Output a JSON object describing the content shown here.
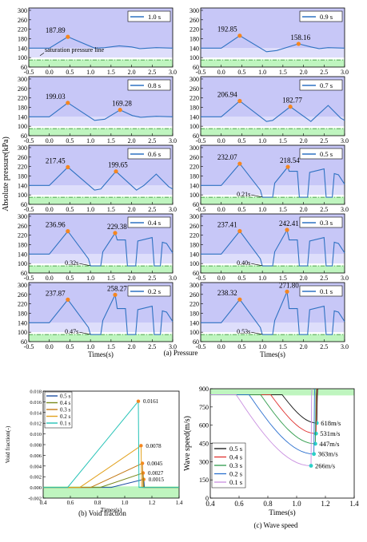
{
  "figure": {
    "caption_a": "(a) Pressure",
    "caption_b": "(b) Void fraction",
    "caption_c": "(c) Wave speed"
  },
  "colors": {
    "panel_bg": "#c7c7f7",
    "panel_bg_light": "#dedefb",
    "green_band": "#bff5bf",
    "green_line": "#2e8b2e",
    "pressure_line": "#2f72c2",
    "peak_marker": "#f5861f",
    "void_series": [
      "#1f4fa3",
      "#7a8a1c",
      "#c47b18",
      "#e2a21f",
      "#24c2b6"
    ],
    "wave_series": [
      "#111111",
      "#e0302e",
      "#2e9b4a",
      "#2a6fcf",
      "#c98fe0"
    ],
    "wave_marker": "#2bd0c7"
  },
  "chart_data": [
    {
      "type": "line",
      "id": "pressure",
      "ylabel": "Absolute pressure(kPa)",
      "xlabel": "Times(s)",
      "xlim": [
        -0.5,
        3.0
      ],
      "ylim": [
        60,
        310
      ],
      "xticks": [
        "-0.5",
        "0.0",
        "0.5",
        "1.0",
        "1.5",
        "2.0",
        "2.5",
        "3.0"
      ],
      "yticks": [
        "60",
        "100",
        "140",
        "180",
        "220",
        "260",
        "300"
      ],
      "saturation_level": 90,
      "saturation_label": "saturation pressure line",
      "panels": [
        {
          "legend": "1.0 s",
          "closure": 1.0,
          "peaks": [
            {
              "t": 0.45,
              "p": 187.89,
              "label": "187.89"
            }
          ]
        },
        {
          "legend": "0.9 s",
          "closure": 0.9,
          "peaks": [
            {
              "t": 0.45,
              "p": 192.85,
              "label": "192.85"
            },
            {
              "t": 1.88,
              "p": 158.16,
              "label": "158.16"
            }
          ]
        },
        {
          "legend": "0.8 s",
          "closure": 0.8,
          "peaks": [
            {
              "t": 0.45,
              "p": 199.03,
              "label": "199.03"
            },
            {
              "t": 1.72,
              "p": 169.28,
              "label": "169.28"
            }
          ]
        },
        {
          "legend": "0.7 s",
          "closure": 0.7,
          "peaks": [
            {
              "t": 0.45,
              "p": 206.94,
              "label": "206.94"
            },
            {
              "t": 1.68,
              "p": 182.77,
              "label": "182.77"
            }
          ]
        },
        {
          "legend": "0.6 s",
          "closure": 0.6,
          "peaks": [
            {
              "t": 0.45,
              "p": 217.45,
              "label": "217.45"
            },
            {
              "t": 1.62,
              "p": 199.65,
              "label": "199.65"
            }
          ]
        },
        {
          "legend": "0.5 s",
          "closure": 0.5,
          "peaks": [
            {
              "t": 0.45,
              "p": 232.07,
              "label": "232.07"
            },
            {
              "t": 1.62,
              "p": 218.54,
              "label": "218.54"
            }
          ],
          "duration_label": "0.21s"
        },
        {
          "legend": "0.4 s",
          "closure": 0.4,
          "peaks": [
            {
              "t": 0.45,
              "p": 236.96,
              "label": "236.96"
            },
            {
              "t": 1.6,
              "p": 229.38,
              "label": "229.38"
            }
          ],
          "duration_label": "0.32s"
        },
        {
          "legend": "0.3 s",
          "closure": 0.3,
          "peaks": [
            {
              "t": 0.45,
              "p": 237.41,
              "label": "237.41"
            },
            {
              "t": 1.6,
              "p": 242.41,
              "label": "242.41"
            }
          ],
          "duration_label": "0.40s"
        },
        {
          "legend": "0.2 s",
          "closure": 0.2,
          "peaks": [
            {
              "t": 0.45,
              "p": 237.87,
              "label": "237.87"
            },
            {
              "t": 1.6,
              "p": 258.27,
              "label": "258.27"
            }
          ],
          "duration_label": "0.47s"
        },
        {
          "legend": "0.1 s",
          "closure": 0.1,
          "peaks": [
            {
              "t": 0.45,
              "p": 238.32,
              "label": "238.32"
            },
            {
              "t": 1.6,
              "p": 271.8,
              "label": "271.80"
            }
          ],
          "duration_label": "0.53s"
        }
      ]
    },
    {
      "type": "line",
      "id": "void",
      "ylabel": "Void fraction(-)",
      "xlabel": "Times(s)",
      "xlim": [
        0.4,
        1.4
      ],
      "ylim": [
        -0.002,
        0.018
      ],
      "xticks": [
        "0.4",
        "0.6",
        "0.8",
        "1.0",
        "1.2",
        "1.4"
      ],
      "yticks": [
        "-0.002",
        "0.000",
        "0.002",
        "0.004",
        "0.006",
        "0.008",
        "0.010",
        "0.012",
        "0.014",
        "0.016",
        "0.018"
      ],
      "series": [
        {
          "name": "0.5 s",
          "start": 0.9,
          "peak_t": 1.14,
          "peak": 0.0015,
          "label": "0.0015"
        },
        {
          "name": "0.4 s",
          "start": 0.82,
          "peak_t": 1.135,
          "peak": 0.0027,
          "label": "0.0027"
        },
        {
          "name": "0.3 s",
          "start": 0.75,
          "peak_t": 1.13,
          "peak": 0.0045,
          "label": "0.0045"
        },
        {
          "name": "0.2 s",
          "start": 0.67,
          "peak_t": 1.12,
          "peak": 0.0078,
          "label": "0.0078"
        },
        {
          "name": "0.1 s",
          "start": 0.58,
          "peak_t": 1.1,
          "peak": 0.0161,
          "label": "0.0161"
        }
      ]
    },
    {
      "type": "line",
      "id": "wave",
      "ylabel": "Wave speed(m/s)",
      "xlabel": "Times(s)",
      "xlim": [
        0.4,
        1.4
      ],
      "ylim": [
        0,
        900
      ],
      "xticks": [
        "0.4",
        "0.6",
        "0.8",
        "1.0",
        "1.2",
        "1.4"
      ],
      "yticks": [
        "0",
        "150",
        "300",
        "450",
        "600",
        "750",
        "900"
      ],
      "series": [
        {
          "name": "0.5 s",
          "start": 0.9,
          "end": 1.14,
          "min": 618,
          "label": "618m/s"
        },
        {
          "name": "0.4 s",
          "start": 0.82,
          "end": 1.135,
          "min": 531,
          "label": "531m/s"
        },
        {
          "name": "0.3 s",
          "start": 0.75,
          "end": 1.13,
          "min": 447,
          "label": "447m/s"
        },
        {
          "name": "0.2 s",
          "start": 0.67,
          "end": 1.12,
          "min": 363,
          "label": "363m/s"
        },
        {
          "name": "0.1 s",
          "start": 0.58,
          "end": 1.1,
          "min": 266,
          "label": "266m/s"
        }
      ]
    }
  ]
}
